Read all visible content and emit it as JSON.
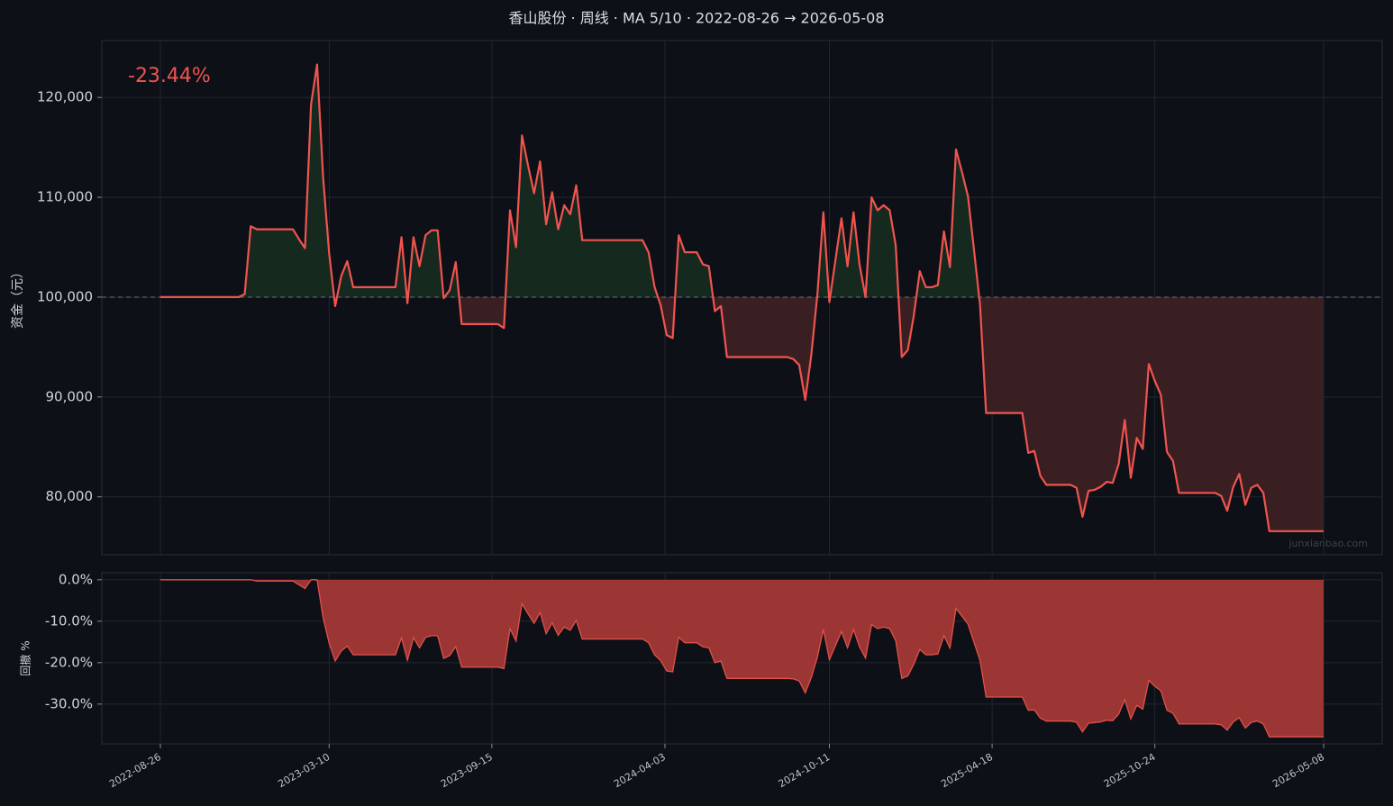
{
  "chart_data": [
    {
      "type": "line",
      "title": "香山股份 · 周线 · MA 5/10 · 2022-08-26 → 2026-05-08",
      "ylabel": "资金（元）",
      "annotation": "-23.44%",
      "watermark": "junxianbao.com",
      "color": "#f0544f",
      "fill_above": "#16291f",
      "fill_below": "#3a1f22",
      "baseline": 100000,
      "grid": true,
      "xlim": [
        "2022-06-19",
        "2026-07-15"
      ],
      "ylim": [
        74200,
        125700
      ],
      "yticks": [
        {
          "value": 80000,
          "label": "80,000"
        },
        {
          "value": 90000,
          "label": "90,000"
        },
        {
          "value": 100000,
          "label": "100,000"
        },
        {
          "value": 110000,
          "label": "110,000"
        },
        {
          "value": 120000,
          "label": "120,000"
        }
      ],
      "x": [
        "2022-08-26",
        "2022-11-25",
        "2022-12-02",
        "2022-12-09",
        "2022-12-16",
        "2023-01-27",
        "2023-02-03",
        "2023-02-10",
        "2023-02-17",
        "2023-02-24",
        "2023-03-03",
        "2023-03-10",
        "2023-03-17",
        "2023-03-24",
        "2023-03-31",
        "2023-04-07",
        "2023-05-26",
        "2023-06-02",
        "2023-06-09",
        "2023-06-16",
        "2023-06-23",
        "2023-06-30",
        "2023-07-07",
        "2023-07-14",
        "2023-07-21",
        "2023-07-28",
        "2023-08-04",
        "2023-08-11",
        "2023-09-22",
        "2023-09-29",
        "2023-10-06",
        "2023-10-13",
        "2023-10-20",
        "2023-10-27",
        "2023-11-03",
        "2023-11-10",
        "2023-11-17",
        "2023-11-24",
        "2023-12-01",
        "2023-12-08",
        "2023-12-15",
        "2023-12-22",
        "2023-12-29",
        "2024-03-08",
        "2024-03-15",
        "2024-03-22",
        "2024-03-29",
        "2024-04-05",
        "2024-04-12",
        "2024-04-19",
        "2024-04-26",
        "2024-05-10",
        "2024-05-17",
        "2024-05-24",
        "2024-05-31",
        "2024-06-07",
        "2024-06-14",
        "2024-08-23",
        "2024-08-30",
        "2024-09-06",
        "2024-09-13",
        "2024-09-20",
        "2024-09-27",
        "2024-10-04",
        "2024-10-11",
        "2024-10-18",
        "2024-10-25",
        "2024-11-01",
        "2024-11-08",
        "2024-11-15",
        "2024-11-22",
        "2024-11-29",
        "2024-12-06",
        "2024-12-13",
        "2024-12-20",
        "2024-12-27",
        "2025-01-03",
        "2025-01-10",
        "2025-01-17",
        "2025-01-24",
        "2025-01-31",
        "2025-02-07",
        "2025-02-14",
        "2025-02-21",
        "2025-02-28",
        "2025-03-07",
        "2025-03-14",
        "2025-03-21",
        "2025-03-28",
        "2025-04-04",
        "2025-04-11",
        "2025-05-23",
        "2025-05-30",
        "2025-06-06",
        "2025-06-13",
        "2025-06-20",
        "2025-07-18",
        "2025-07-25",
        "2025-08-01",
        "2025-08-08",
        "2025-08-15",
        "2025-08-22",
        "2025-08-29",
        "2025-09-05",
        "2025-09-12",
        "2025-09-19",
        "2025-09-26",
        "2025-10-03",
        "2025-10-10",
        "2025-10-17",
        "2025-10-24",
        "2025-10-31",
        "2025-11-07",
        "2025-11-14",
        "2025-11-21",
        "2026-01-02",
        "2026-01-09",
        "2026-01-16",
        "2026-01-23",
        "2026-01-30",
        "2026-02-06",
        "2026-02-13",
        "2026-02-20",
        "2026-02-27",
        "2026-03-06",
        "2026-05-08"
      ],
      "values": [
        100000,
        100000,
        100300,
        107100,
        106800,
        106800,
        105800,
        104900,
        119300,
        123300,
        112000,
        104400,
        99100,
        102100,
        103600,
        101000,
        101000,
        106000,
        99400,
        106000,
        103100,
        106200,
        106700,
        106700,
        99900,
        100700,
        103500,
        97300,
        97300,
        96900,
        108700,
        105000,
        116200,
        113200,
        110400,
        113600,
        107300,
        110500,
        106800,
        109200,
        108300,
        111200,
        105700,
        105700,
        104500,
        101000,
        99200,
        96200,
        95900,
        106200,
        104500,
        104500,
        103300,
        103100,
        98600,
        99100,
        94000,
        94000,
        93800,
        93200,
        89700,
        94200,
        100200,
        108500,
        99500,
        103700,
        107900,
        103100,
        108500,
        103300,
        100000,
        110000,
        108700,
        109200,
        108700,
        105200,
        94000,
        94700,
        98100,
        102600,
        101000,
        101000,
        101200,
        106600,
        103000,
        114800,
        112500,
        110100,
        104700,
        99200,
        88400,
        88400,
        84400,
        84600,
        82100,
        81200,
        81200,
        80900,
        78000,
        80600,
        80700,
        81000,
        81500,
        81400,
        83300,
        87700,
        81900,
        85900,
        84800,
        93300,
        91600,
        90200,
        84500,
        83600,
        80400,
        80400,
        80100,
        78600,
        81000,
        82300,
        79200,
        80900,
        81200,
        80400,
        76560,
        76560
      ]
    },
    {
      "type": "area",
      "ylabel": "回撤 %",
      "color": "#e0504a",
      "fill": "#9c3634",
      "grid": true,
      "xlim": [
        "2022-06-19",
        "2026-07-15"
      ],
      "ylim": [
        -39.6,
        1.7
      ],
      "yticks": [
        {
          "value": -30,
          "label": "-30.0%"
        },
        {
          "value": -20,
          "label": "-20.0%"
        },
        {
          "value": -10,
          "label": "-10.0%"
        },
        {
          "value": 0,
          "label": "0.0%"
        }
      ],
      "xticks": [
        "2022-08-26",
        "2023-03-10",
        "2023-09-15",
        "2024-04-03",
        "2024-10-11",
        "2025-04-18",
        "2025-10-24",
        "2026-05-08"
      ],
      "x": [
        "2022-08-26",
        "2022-11-25",
        "2022-12-02",
        "2022-12-09",
        "2022-12-16",
        "2023-01-27",
        "2023-02-03",
        "2023-02-10",
        "2023-02-17",
        "2023-02-24",
        "2023-03-03",
        "2023-03-10",
        "2023-03-17",
        "2023-03-24",
        "2023-03-31",
        "2023-04-07",
        "2023-05-26",
        "2023-06-02",
        "2023-06-09",
        "2023-06-16",
        "2023-06-23",
        "2023-06-30",
        "2023-07-07",
        "2023-07-14",
        "2023-07-21",
        "2023-07-28",
        "2023-08-04",
        "2023-08-11",
        "2023-09-22",
        "2023-09-29",
        "2023-10-06",
        "2023-10-13",
        "2023-10-20",
        "2023-10-27",
        "2023-11-03",
        "2023-11-10",
        "2023-11-17",
        "2023-11-24",
        "2023-12-01",
        "2023-12-08",
        "2023-12-15",
        "2023-12-22",
        "2023-12-29",
        "2024-03-08",
        "2024-03-15",
        "2024-03-22",
        "2024-03-29",
        "2024-04-05",
        "2024-04-12",
        "2024-04-19",
        "2024-04-26",
        "2024-05-10",
        "2024-05-17",
        "2024-05-24",
        "2024-05-31",
        "2024-06-07",
        "2024-06-14",
        "2024-08-23",
        "2024-08-30",
        "2024-09-06",
        "2024-09-13",
        "2024-09-20",
        "2024-09-27",
        "2024-10-04",
        "2024-10-11",
        "2024-10-18",
        "2024-10-25",
        "2024-11-01",
        "2024-11-08",
        "2024-11-15",
        "2024-11-22",
        "2024-11-29",
        "2024-12-06",
        "2024-12-13",
        "2024-12-20",
        "2024-12-27",
        "2025-01-03",
        "2025-01-10",
        "2025-01-17",
        "2025-01-24",
        "2025-01-31",
        "2025-02-07",
        "2025-02-14",
        "2025-02-21",
        "2025-02-28",
        "2025-03-07",
        "2025-03-14",
        "2025-03-21",
        "2025-03-28",
        "2025-04-04",
        "2025-04-11",
        "2025-05-23",
        "2025-05-30",
        "2025-06-06",
        "2025-06-13",
        "2025-06-20",
        "2025-07-18",
        "2025-07-25",
        "2025-08-01",
        "2025-08-08",
        "2025-08-15",
        "2025-08-22",
        "2025-08-29",
        "2025-09-05",
        "2025-09-12",
        "2025-09-19",
        "2025-09-26",
        "2025-10-03",
        "2025-10-10",
        "2025-10-17",
        "2025-10-24",
        "2025-10-31",
        "2025-11-07",
        "2025-11-14",
        "2025-11-21",
        "2026-01-02",
        "2026-01-09",
        "2026-01-16",
        "2026-01-23",
        "2026-01-30",
        "2026-02-06",
        "2026-02-13",
        "2026-02-20",
        "2026-02-27",
        "2026-03-06",
        "2026-05-08"
      ],
      "values": [
        0,
        0,
        0,
        0,
        -0.3,
        -0.3,
        -1.2,
        -2.1,
        0,
        0,
        -9.2,
        -15.3,
        -19.6,
        -17.2,
        -16.0,
        -18.1,
        -18.1,
        -14.0,
        -19.4,
        -14.0,
        -16.4,
        -13.9,
        -13.5,
        -13.5,
        -19.0,
        -18.3,
        -16.1,
        -21.1,
        -21.1,
        -21.4,
        -11.8,
        -14.8,
        -5.8,
        -8.2,
        -10.5,
        -7.9,
        -13.0,
        -10.4,
        -13.4,
        -11.4,
        -12.2,
        -9.8,
        -14.3,
        -14.3,
        -15.2,
        -18.1,
        -19.5,
        -22.0,
        -22.2,
        -13.9,
        -15.2,
        -15.2,
        -16.2,
        -16.4,
        -20.0,
        -19.6,
        -23.8,
        -23.8,
        -23.9,
        -24.4,
        -27.3,
        -23.6,
        -18.7,
        -12.0,
        -19.3,
        -15.9,
        -12.5,
        -16.4,
        -12.0,
        -16.2,
        -18.9,
        -10.8,
        -11.8,
        -11.4,
        -11.8,
        -14.7,
        -23.8,
        -23.2,
        -20.4,
        -16.8,
        -18.1,
        -18.1,
        -17.9,
        -13.5,
        -16.5,
        -6.9,
        -8.8,
        -10.7,
        -15.1,
        -19.5,
        -28.3,
        -28.3,
        -31.5,
        -31.4,
        -33.4,
        -34.1,
        -34.1,
        -34.4,
        -36.7,
        -34.6,
        -34.5,
        -34.3,
        -33.9,
        -34.0,
        -32.4,
        -28.9,
        -33.6,
        -30.3,
        -31.2,
        -24.3,
        -25.7,
        -26.8,
        -31.5,
        -32.2,
        -34.8,
        -34.8,
        -35.0,
        -36.3,
        -34.3,
        -33.3,
        -35.8,
        -34.4,
        -34.1,
        -34.8,
        -37.9,
        -37.9
      ]
    }
  ]
}
